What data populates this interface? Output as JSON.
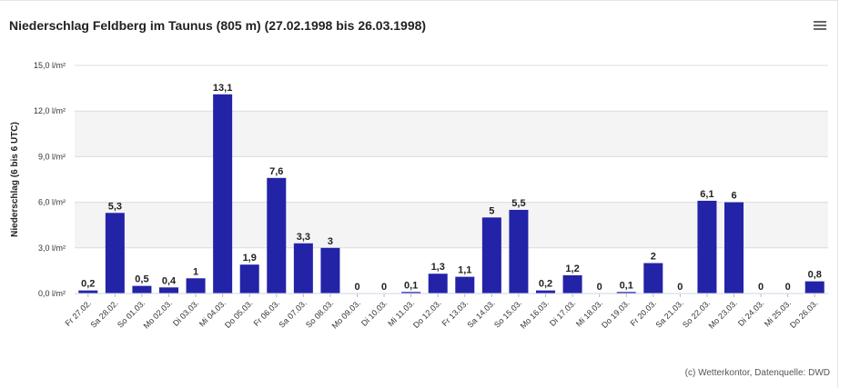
{
  "header": {
    "title": "Niederschlag Feldberg im Taunus (805 m) (27.02.1998 bis 26.03.1998)",
    "menu_icon": "hamburger-menu-icon"
  },
  "credit": "(c) Wetterkontor, Datenquelle: DWD",
  "colors": {
    "bar": "#2323a8",
    "band": "#f4f4f4",
    "grid": "#dcdcdc"
  },
  "chart_data": {
    "type": "bar",
    "title": "Niederschlag Feldberg im Taunus (805 m) (27.02.1998 bis 26.03.1998)",
    "ylabel": "Niederschlag (6 bis 6 UTC)",
    "xlabel": "",
    "ylim": [
      0,
      15
    ],
    "yticks": [
      "0,0 l/m²",
      "3,0 l/m²",
      "6,0 l/m²",
      "9,0 l/m²",
      "12,0 l/m²",
      "15,0 l/m²"
    ],
    "ytick_values": [
      0,
      3,
      6,
      9,
      12,
      15
    ],
    "grid": true,
    "categories": [
      "Fr 27.02.",
      "Sa 28.02.",
      "So 01.03.",
      "Mo 02.03.",
      "Di 03.03.",
      "Mi 04.03.",
      "Do 05.03.",
      "Fr 06.03.",
      "Sa 07.03.",
      "So 08.03.",
      "Mo 09.03.",
      "Di 10.03.",
      "Mi 11.03.",
      "Do 12.03.",
      "Fr 13.03.",
      "Sa 14.03.",
      "So 15.03.",
      "Mo 16.03.",
      "Di 17.03.",
      "Mi 18.03.",
      "Do 19.03.",
      "Fr 20.03.",
      "Sa 21.03.",
      "So 22.03.",
      "Mo 23.03.",
      "Di 24.03.",
      "Mi 25.03.",
      "Do 26.03."
    ],
    "values": [
      0.2,
      5.3,
      0.5,
      0.4,
      1,
      13.1,
      1.9,
      7.6,
      3.3,
      3,
      0,
      0,
      0.1,
      1.3,
      1.1,
      5,
      5.5,
      0.2,
      1.2,
      0,
      0.1,
      2,
      0,
      6.1,
      6,
      0,
      0,
      0.8
    ],
    "labels": [
      "0,2",
      "5,3",
      "0,5",
      "0,4",
      "1",
      "13,1",
      "1,9",
      "7,6",
      "3,3",
      "3",
      "0",
      "0",
      "0,1",
      "1,3",
      "1,1",
      "5",
      "5,5",
      "0,2",
      "1,2",
      "0",
      "0,1",
      "2",
      "0",
      "6,1",
      "6",
      "0",
      "0",
      "0,8"
    ]
  }
}
